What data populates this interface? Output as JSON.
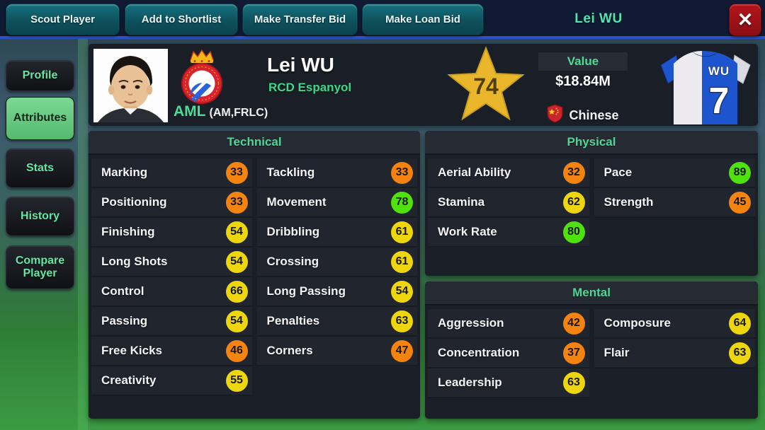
{
  "top_bar": {
    "buttons": [
      {
        "label": "Scout Player"
      },
      {
        "label": "Add to Shortlist"
      },
      {
        "label": "Make Transfer Bid"
      },
      {
        "label": "Make Loan Bid"
      }
    ],
    "title": "Lei WU",
    "close_icon": "✕"
  },
  "sidebar": {
    "items": [
      {
        "label": "Profile",
        "active": false
      },
      {
        "label": "Attributes",
        "active": true
      },
      {
        "label": "Stats",
        "active": false
      },
      {
        "label": "History",
        "active": false
      },
      {
        "label": "Compare Player",
        "active": false
      }
    ]
  },
  "player": {
    "name": "Lei WU",
    "club": "RCD Espanyol",
    "position": "AML",
    "position_detail": "(AM,FRLC)",
    "rating": 74,
    "value_label": "Value",
    "value": "$18.84M",
    "nationality": "Chinese",
    "shirt_name": "WU",
    "shirt_number": 7
  },
  "palette": {
    "low": "#f5830f",
    "mid": "#eed60e",
    "high": "#50e20c",
    "accent_green": "#4ddc95",
    "star_gold": "#eab62b",
    "top_bar_blue_line": "#2b50c8",
    "button_teal": "#0e515d",
    "close_red": "#9d1117"
  },
  "sections": [
    {
      "key": "technical",
      "title": "Technical",
      "left": [
        {
          "label": "Marking",
          "value": 33,
          "tier": "low"
        },
        {
          "label": "Positioning",
          "value": 33,
          "tier": "low"
        },
        {
          "label": "Finishing",
          "value": 54,
          "tier": "mid"
        },
        {
          "label": "Long Shots",
          "value": 54,
          "tier": "mid"
        },
        {
          "label": "Control",
          "value": 66,
          "tier": "mid"
        },
        {
          "label": "Passing",
          "value": 54,
          "tier": "mid"
        },
        {
          "label": "Free Kicks",
          "value": 46,
          "tier": "low"
        },
        {
          "label": "Creativity",
          "value": 55,
          "tier": "mid"
        }
      ],
      "right": [
        {
          "label": "Tackling",
          "value": 33,
          "tier": "low"
        },
        {
          "label": "Movement",
          "value": 78,
          "tier": "high"
        },
        {
          "label": "Dribbling",
          "value": 61,
          "tier": "mid"
        },
        {
          "label": "Crossing",
          "value": 61,
          "tier": "mid"
        },
        {
          "label": "Long Passing",
          "value": 54,
          "tier": "mid"
        },
        {
          "label": "Penalties",
          "value": 63,
          "tier": "mid"
        },
        {
          "label": "Corners",
          "value": 47,
          "tier": "low"
        }
      ]
    },
    {
      "key": "physical",
      "title": "Physical",
      "left": [
        {
          "label": "Aerial Ability",
          "value": 32,
          "tier": "low"
        },
        {
          "label": "Stamina",
          "value": 62,
          "tier": "mid"
        },
        {
          "label": "Work Rate",
          "value": 80,
          "tier": "high"
        }
      ],
      "right": [
        {
          "label": "Pace",
          "value": 89,
          "tier": "high"
        },
        {
          "label": "Strength",
          "value": 45,
          "tier": "low"
        }
      ]
    },
    {
      "key": "mental",
      "title": "Mental",
      "left": [
        {
          "label": "Aggression",
          "value": 42,
          "tier": "low"
        },
        {
          "label": "Concentration",
          "value": 37,
          "tier": "low"
        },
        {
          "label": "Leadership",
          "value": 63,
          "tier": "mid"
        }
      ],
      "right": [
        {
          "label": "Composure",
          "value": 64,
          "tier": "mid"
        },
        {
          "label": "Flair",
          "value": 63,
          "tier": "mid"
        }
      ]
    }
  ]
}
